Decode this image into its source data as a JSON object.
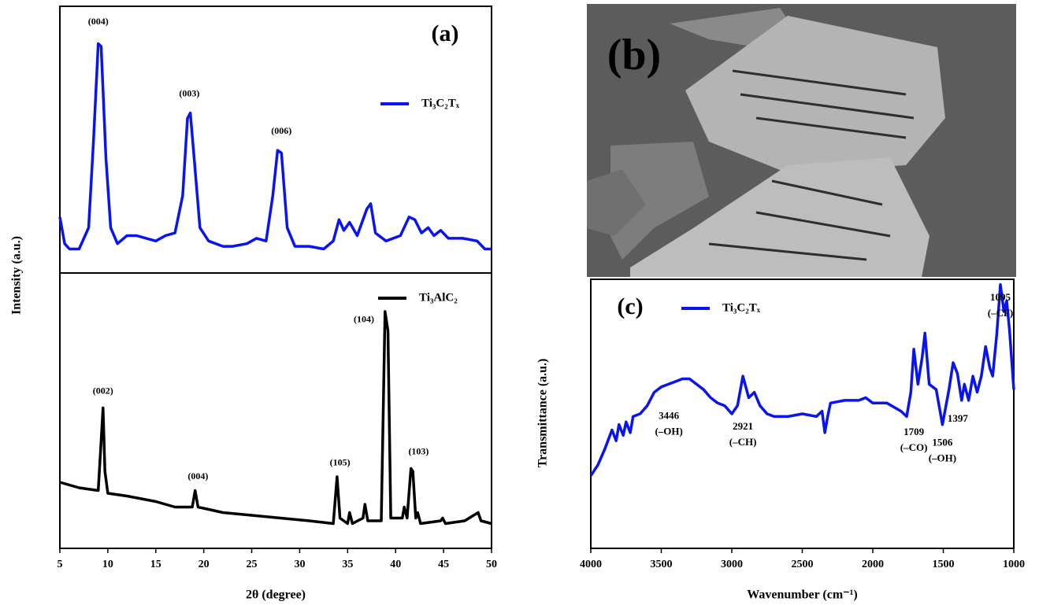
{
  "chart_data": [
    {
      "type": "line",
      "panel_label": "(a)",
      "ylabel": "Intensity (a.u.)",
      "xlim": [
        5,
        50
      ],
      "ylim": [
        0,
        100
      ],
      "legend": "upper right",
      "x": [
        5,
        5.5,
        6,
        7,
        8,
        8.5,
        9.0,
        9.3,
        9.8,
        10.3,
        11,
        12,
        13,
        14,
        15,
        16,
        17,
        17.8,
        18.3,
        18.6,
        19.0,
        19.6,
        20.5,
        22,
        23,
        24.5,
        25.5,
        26.5,
        27.2,
        27.7,
        28.1,
        28.7,
        29.5,
        31,
        32.5,
        33.5,
        34.1,
        34.6,
        35.2,
        36,
        37,
        37.4,
        37.9,
        39,
        40.5,
        41.4,
        42,
        42.7,
        43.4,
        44,
        44.7,
        45.5,
        47,
        48.5,
        49.3,
        50
      ],
      "series": [
        {
          "name": "Ti₃C₂Tₓ",
          "color": "#0a14f0",
          "values": [
            21,
            11,
            9,
            9,
            17,
            49,
            86,
            85,
            43,
            17,
            11,
            14,
            14,
            13,
            12,
            14,
            15,
            29,
            58,
            60,
            43,
            17,
            12,
            10,
            10,
            11,
            13,
            12,
            29,
            46,
            45,
            17,
            10,
            10,
            9,
            12,
            20,
            16,
            19,
            14,
            24,
            26,
            15,
            12,
            14,
            21,
            20,
            15,
            17,
            14,
            16,
            13,
            13,
            12,
            9,
            9
          ]
        }
      ],
      "annotations": [
        {
          "text": "(004)",
          "x": 9.0,
          "y": 94
        },
        {
          "text": "(003)",
          "x": 18.5,
          "y": 67
        },
        {
          "text": "(006)",
          "x": 28.1,
          "y": 53
        }
      ]
    },
    {
      "type": "line",
      "xlabel": "2θ (degree)",
      "xlim": [
        5,
        50
      ],
      "ylim": [
        0,
        100
      ],
      "xticks": [
        5,
        10,
        15,
        20,
        25,
        30,
        35,
        40,
        45,
        50
      ],
      "legend": "upper center",
      "x": [
        5,
        7,
        9,
        9.3,
        9.5,
        9.7,
        10,
        12,
        15,
        17,
        18.8,
        19.1,
        19.4,
        22,
        25,
        28,
        31,
        33.5,
        33.9,
        34.2,
        35,
        35.2,
        35.5,
        36.6,
        36.8,
        37.1,
        38.5,
        38.9,
        39.2,
        39.5,
        40.7,
        40.9,
        41.2,
        41.6,
        41.8,
        42.1,
        42.3,
        42.6,
        44.7,
        44.9,
        45.2,
        47.2,
        48.6,
        48.9,
        50
      ],
      "series": [
        {
          "name": "Ti₃AlC₂",
          "color": "#000000",
          "values": [
            24,
            22,
            21,
            39,
            51,
            28,
            20,
            19,
            17,
            15,
            15,
            21,
            15,
            13,
            12,
            11,
            10,
            9,
            26,
            11,
            9,
            13,
            9,
            11,
            16,
            10,
            10,
            86,
            79,
            11,
            11,
            15,
            11,
            29,
            28,
            11,
            13,
            9,
            10,
            11,
            9,
            10,
            13,
            10,
            9
          ]
        }
      ],
      "annotations": [
        {
          "text": "(002)",
          "x": 9.5,
          "y": 57
        },
        {
          "text": "(004)",
          "x": 19.4,
          "y": 26
        },
        {
          "text": "(105)",
          "x": 34.2,
          "y": 31
        },
        {
          "text": "(104)",
          "x": 36.7,
          "y": 83
        },
        {
          "text": "(103)",
          "x": 42.4,
          "y": 35
        }
      ]
    },
    {
      "type": "image",
      "panel_label": "(b)"
    },
    {
      "type": "line",
      "panel_label": "(c)",
      "xlabel": "Wavenumber (cm⁻¹)",
      "ylabel": "Transmittance (a.u.)",
      "xlim": [
        4000,
        1000
      ],
      "ylim": [
        0,
        100
      ],
      "xticks": [
        4000,
        3500,
        3000,
        2500,
        2000,
        1500,
        1000
      ],
      "legend": "upper left",
      "x": [
        4000,
        3950,
        3900,
        3850,
        3820,
        3800,
        3770,
        3750,
        3720,
        3700,
        3650,
        3600,
        3550,
        3500,
        3450,
        3400,
        3350,
        3300,
        3250,
        3200,
        3150,
        3100,
        3050,
        3000,
        2960,
        2921,
        2880,
        2840,
        2800,
        2750,
        2700,
        2600,
        2500,
        2400,
        2360,
        2340,
        2320,
        2300,
        2200,
        2100,
        2050,
        2000,
        1900,
        1800,
        1760,
        1730,
        1709,
        1680,
        1650,
        1630,
        1600,
        1550,
        1506,
        1460,
        1430,
        1400,
        1370,
        1350,
        1320,
        1290,
        1260,
        1230,
        1200,
        1170,
        1150,
        1120,
        1095,
        1070,
        1050,
        1030,
        1000
      ],
      "series": [
        {
          "name": "Ti₃C₂Tₓ",
          "color": "#0a14f0",
          "values": [
            27,
            31,
            37,
            44,
            40,
            46,
            42,
            47,
            43,
            49,
            50,
            53,
            58,
            60,
            61,
            62,
            63,
            63,
            61,
            59,
            56,
            54,
            53,
            50,
            53,
            64,
            56,
            58,
            53,
            50,
            49,
            49,
            50,
            49,
            51,
            43,
            49,
            54,
            55,
            55,
            56,
            54,
            54,
            51,
            49,
            58,
            74,
            61,
            71,
            80,
            61,
            59,
            46,
            59,
            69,
            65,
            55,
            61,
            55,
            64,
            58,
            64,
            75,
            67,
            64,
            80,
            98,
            88,
            92,
            81,
            59
          ]
        }
      ],
      "annotations": [
        {
          "lines": [
            "3446",
            "(–OH)"
          ],
          "x": 3446,
          "y": 49
        },
        {
          "lines": [
            "2921",
            "(–CH)"
          ],
          "x": 2921,
          "y": 45
        },
        {
          "lines": [
            "1709",
            "(–CO)"
          ],
          "x": 1709,
          "y": 43
        },
        {
          "lines": [
            "1506",
            "(–OH)"
          ],
          "x": 1506,
          "y": 39
        },
        {
          "lines": [
            "1397"
          ],
          "x": 1397,
          "y": 48
        },
        {
          "lines": [
            "1095",
            "(–CF)"
          ],
          "x": 1095,
          "y": 93
        }
      ]
    }
  ]
}
